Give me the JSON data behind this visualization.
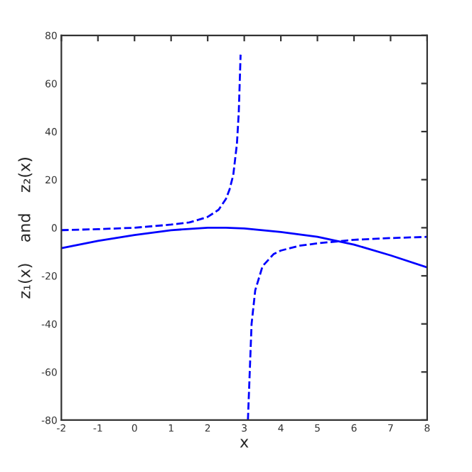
{
  "chart_data": {
    "type": "line",
    "xlabel": "x",
    "ylabel": "z₁(x)    and    z₂(x)",
    "xlim": [
      -2,
      8
    ],
    "ylim": [
      -80,
      80
    ],
    "xticks": [
      -2,
      -1,
      0,
      1,
      2,
      3,
      4,
      5,
      6,
      7,
      8
    ],
    "yticks": [
      -80,
      -60,
      -40,
      -20,
      0,
      20,
      40,
      60,
      80
    ],
    "grid": false,
    "marker": "none",
    "series": [
      {
        "color": "#0000ff",
        "line_style": "solid",
        "x": [
          -2,
          -1,
          0,
          1,
          2,
          2.5,
          3,
          4,
          5,
          6,
          7,
          8
        ],
        "values": [
          -8.5,
          -5.5,
          -3,
          -1,
          0,
          0,
          -0.3,
          -1.8,
          -3.8,
          -7,
          -11.5,
          -16.5
        ]
      },
      {
        "color": "#0000ff",
        "line_style": "dashed",
        "x": [
          -2,
          -1,
          0,
          1,
          1.5,
          2,
          2.3,
          2.5,
          2.6,
          2.7,
          2.8,
          2.85,
          2.9
        ],
        "values": [
          -1,
          -0.6,
          0,
          1.3,
          2.2,
          4.5,
          7.5,
          12,
          16,
          22,
          35,
          48,
          72
        ]
      },
      {
        "color": "#0000ff",
        "line_style": "dashed",
        "x": [
          3.1,
          3.15,
          3.2,
          3.3,
          3.5,
          3.8,
          4,
          4.5,
          5,
          6,
          7,
          8
        ],
        "values": [
          -80,
          -60,
          -40,
          -26,
          -16,
          -11,
          -9.5,
          -7.5,
          -6.5,
          -5,
          -4.3,
          -3.8
        ]
      }
    ]
  }
}
